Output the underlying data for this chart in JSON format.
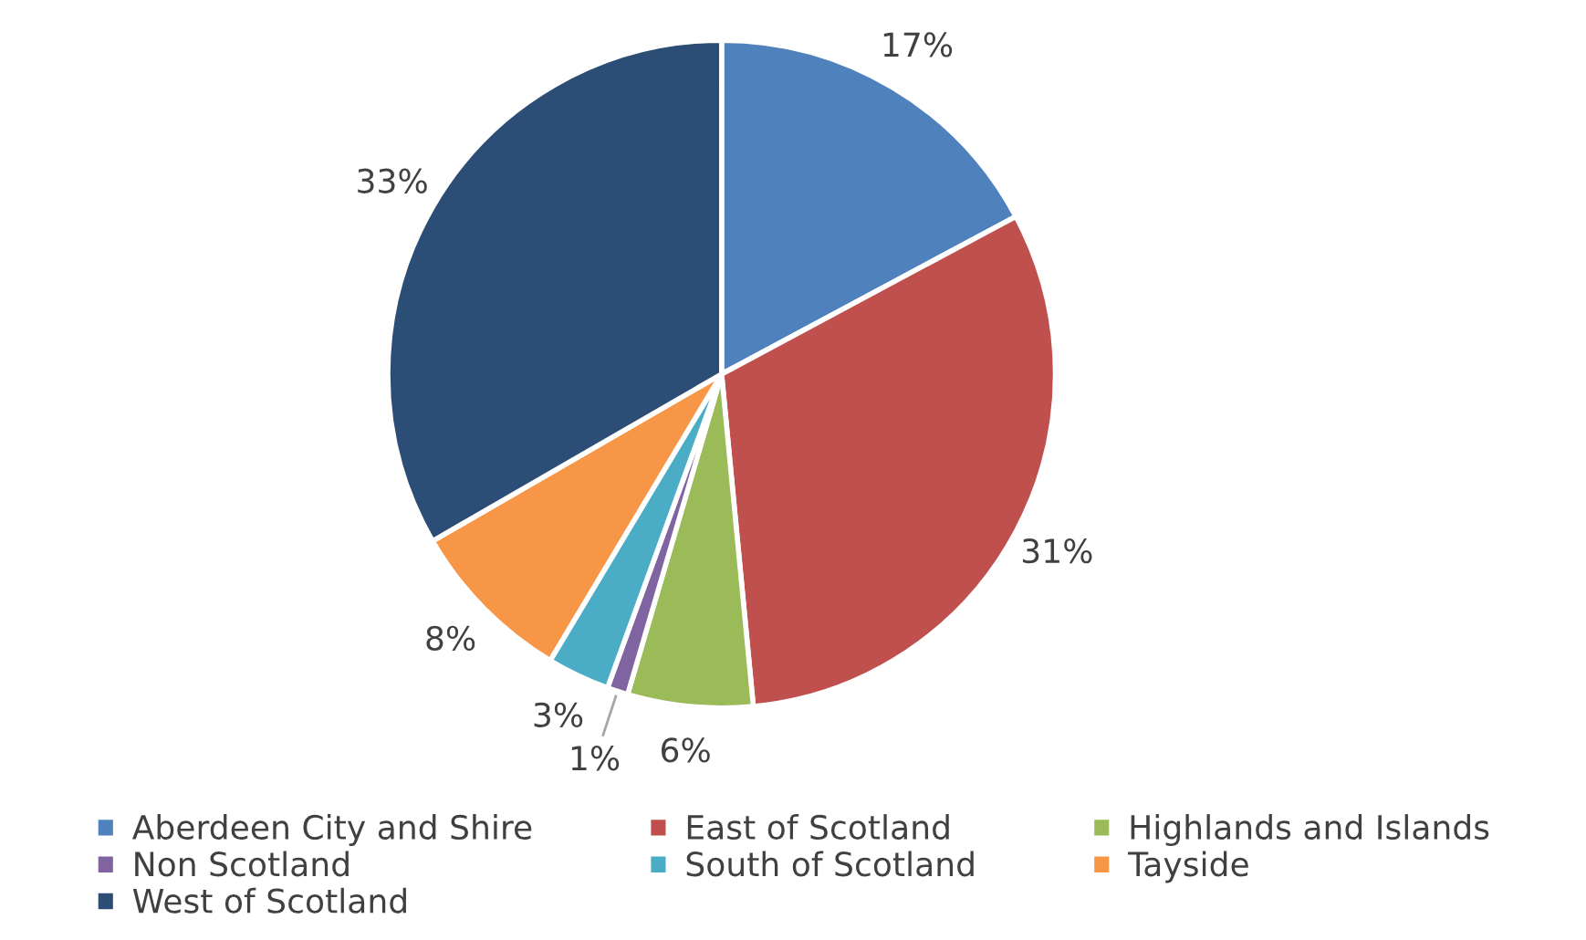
{
  "chart_data": {
    "type": "pie",
    "categories": [
      "Aberdeen City and Shire",
      "East of Scotland",
      "Highlands and Islands",
      "Non Scotland",
      "South of Scotland",
      "Tayside",
      "West of Scotland"
    ],
    "values": [
      17,
      31,
      6,
      1,
      3,
      8,
      33
    ],
    "value_labels": [
      "17%",
      "31%",
      "6%",
      "1%",
      "3%",
      "8%",
      "33%"
    ],
    "colors": [
      "#4f81bd",
      "#c0504d",
      "#9bbb59",
      "#8064a2",
      "#4bacc6",
      "#f79646",
      "#2c4d75"
    ],
    "legend": "bottom"
  }
}
